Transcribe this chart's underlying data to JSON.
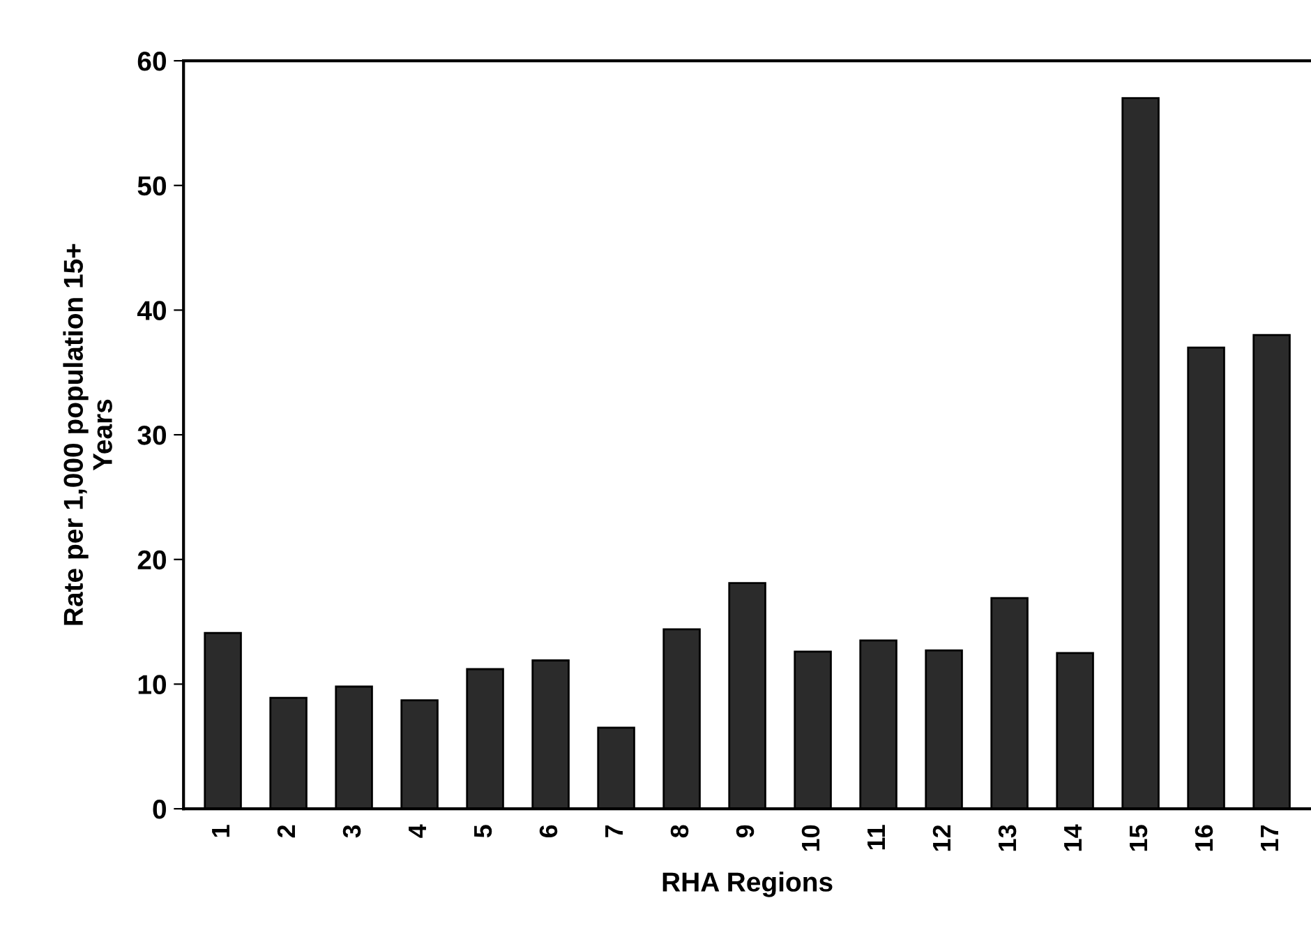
{
  "chart_data": {
    "type": "bar",
    "xlabel": "RHA Regions",
    "ylabel": "Rate per 1,000 population 15+\nYears",
    "categories": [
      "1",
      "2",
      "3",
      "4",
      "5",
      "6",
      "7",
      "8",
      "9",
      "10",
      "11",
      "12",
      "13",
      "14",
      "15",
      "16",
      "17"
    ],
    "values": [
      14.1,
      8.9,
      9.8,
      8.7,
      11.2,
      11.9,
      6.5,
      14.4,
      18.1,
      12.6,
      13.5,
      12.7,
      16.9,
      12.5,
      57,
      37,
      38
    ],
    "color": "#2b2b2b",
    "ylim": [
      0,
      60
    ],
    "yticks": [
      0,
      10,
      20,
      30,
      40,
      50,
      60
    ],
    "grid": false
  }
}
